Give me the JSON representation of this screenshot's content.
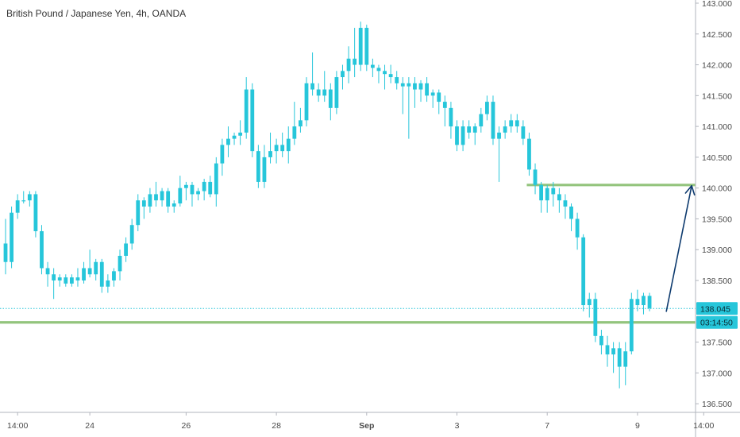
{
  "chart_data": {
    "type": "candlestick",
    "title": "British Pound / Japanese Yen, 4h, OANDA",
    "ylim": [
      136.45,
      143.0
    ],
    "yticks": [
      {
        "value": 143.0,
        "label": "143.000"
      },
      {
        "value": 142.5,
        "label": "142.500"
      },
      {
        "value": 142.0,
        "label": "142.000"
      },
      {
        "value": 141.5,
        "label": "141.500"
      },
      {
        "value": 141.0,
        "label": "141.000"
      },
      {
        "value": 140.5,
        "label": "140.500"
      },
      {
        "value": 140.0,
        "label": "140.000"
      },
      {
        "value": 139.5,
        "label": "139.500"
      },
      {
        "value": 139.0,
        "label": "139.000"
      },
      {
        "value": 138.5,
        "label": "138.500"
      },
      {
        "value": 137.5,
        "label": "137.500"
      },
      {
        "value": 137.0,
        "label": "137.000"
      },
      {
        "value": 136.5,
        "label": "136.500"
      }
    ],
    "xticks": [
      {
        "index": 2,
        "label": "14:00",
        "bold": false
      },
      {
        "index": 14,
        "label": "24",
        "bold": false
      },
      {
        "index": 30,
        "label": "26",
        "bold": false
      },
      {
        "index": 45,
        "label": "28",
        "bold": false
      },
      {
        "index": 60,
        "label": "Sep",
        "bold": true
      },
      {
        "index": 75,
        "label": "3",
        "bold": false
      },
      {
        "index": 90,
        "label": "7",
        "bold": false
      },
      {
        "index": 105,
        "label": "9",
        "bold": false
      },
      {
        "index": 116,
        "label": "14:00",
        "bold": false
      }
    ],
    "candles": [
      [
        139.1,
        139.5,
        138.6,
        138.8
      ],
      [
        138.8,
        139.7,
        138.7,
        139.6
      ],
      [
        139.6,
        139.9,
        139.5,
        139.8
      ],
      [
        139.8,
        139.95,
        139.75,
        139.8
      ],
      [
        139.8,
        139.95,
        139.7,
        139.9
      ],
      [
        139.9,
        139.95,
        139.2,
        139.3
      ],
      [
        139.3,
        139.4,
        138.6,
        138.7
      ],
      [
        138.7,
        138.8,
        138.4,
        138.6
      ],
      [
        138.6,
        138.7,
        138.2,
        138.5
      ],
      [
        138.5,
        138.6,
        138.4,
        138.55
      ],
      [
        138.55,
        138.6,
        138.4,
        138.45
      ],
      [
        138.45,
        138.6,
        138.4,
        138.55
      ],
      [
        138.55,
        138.7,
        138.4,
        138.5
      ],
      [
        138.5,
        138.8,
        138.45,
        138.7
      ],
      [
        138.7,
        139.0,
        138.55,
        138.6
      ],
      [
        138.6,
        138.85,
        138.5,
        138.8
      ],
      [
        138.8,
        138.85,
        138.3,
        138.4
      ],
      [
        138.4,
        138.6,
        138.3,
        138.5
      ],
      [
        138.5,
        138.7,
        138.4,
        138.65
      ],
      [
        138.65,
        139.0,
        138.5,
        138.9
      ],
      [
        138.9,
        139.2,
        138.8,
        139.1
      ],
      [
        139.1,
        139.5,
        139.0,
        139.4
      ],
      [
        139.4,
        139.9,
        139.3,
        139.8
      ],
      [
        139.8,
        139.85,
        139.5,
        139.7
      ],
      [
        139.7,
        140.0,
        139.6,
        139.9
      ],
      [
        139.9,
        140.1,
        139.7,
        139.8
      ],
      [
        139.8,
        140.0,
        139.7,
        139.95
      ],
      [
        139.95,
        140.0,
        139.6,
        139.7
      ],
      [
        139.7,
        139.8,
        139.6,
        139.75
      ],
      [
        139.75,
        140.2,
        139.7,
        140.0
      ],
      [
        140.0,
        140.1,
        139.8,
        140.05
      ],
      [
        140.05,
        140.1,
        139.7,
        139.9
      ],
      [
        139.9,
        140.0,
        139.8,
        139.95
      ],
      [
        139.95,
        140.15,
        139.8,
        140.1
      ],
      [
        140.1,
        140.2,
        139.85,
        139.9
      ],
      [
        139.9,
        140.5,
        139.7,
        140.4
      ],
      [
        140.4,
        140.8,
        140.2,
        140.7
      ],
      [
        140.7,
        141.0,
        140.5,
        140.8
      ],
      [
        140.8,
        140.9,
        140.7,
        140.85
      ],
      [
        140.85,
        141.1,
        140.7,
        140.9
      ],
      [
        140.9,
        141.8,
        140.8,
        141.6
      ],
      [
        141.6,
        141.7,
        140.5,
        140.6
      ],
      [
        140.6,
        140.7,
        140.0,
        140.1
      ],
      [
        140.1,
        140.7,
        140.0,
        140.5
      ],
      [
        140.5,
        140.9,
        140.4,
        140.6
      ],
      [
        140.6,
        140.8,
        140.4,
        140.7
      ],
      [
        140.7,
        140.9,
        140.5,
        140.6
      ],
      [
        140.6,
        141.0,
        140.4,
        140.8
      ],
      [
        140.8,
        141.4,
        140.7,
        141.0
      ],
      [
        141.0,
        141.3,
        140.9,
        141.1
      ],
      [
        141.1,
        141.8,
        141.0,
        141.7
      ],
      [
        141.7,
        142.2,
        141.5,
        141.6
      ],
      [
        141.6,
        141.7,
        141.4,
        141.5
      ],
      [
        141.5,
        141.9,
        141.4,
        141.6
      ],
      [
        141.6,
        141.7,
        141.1,
        141.3
      ],
      [
        141.3,
        141.9,
        141.2,
        141.8
      ],
      [
        141.8,
        142.0,
        141.6,
        141.9
      ],
      [
        141.9,
        142.3,
        141.7,
        142.1
      ],
      [
        142.1,
        142.6,
        141.8,
        142.0
      ],
      [
        142.0,
        142.7,
        141.9,
        142.6
      ],
      [
        142.6,
        142.65,
        141.9,
        142.0
      ],
      [
        142.0,
        142.1,
        141.8,
        141.95
      ],
      [
        141.95,
        142.0,
        141.7,
        141.9
      ],
      [
        141.9,
        142.0,
        141.6,
        141.85
      ],
      [
        141.85,
        142.0,
        141.7,
        141.8
      ],
      [
        141.8,
        141.9,
        141.6,
        141.7
      ],
      [
        141.7,
        141.8,
        141.2,
        141.65
      ],
      [
        141.65,
        141.8,
        140.8,
        141.7
      ],
      [
        141.7,
        141.8,
        141.3,
        141.6
      ],
      [
        141.6,
        141.75,
        141.4,
        141.7
      ],
      [
        141.7,
        141.8,
        141.4,
        141.5
      ],
      [
        141.5,
        141.6,
        141.3,
        141.55
      ],
      [
        141.55,
        141.6,
        141.2,
        141.4
      ],
      [
        141.4,
        141.5,
        141.0,
        141.3
      ],
      [
        141.3,
        141.4,
        140.8,
        141.0
      ],
      [
        141.0,
        141.1,
        140.6,
        140.7
      ],
      [
        140.7,
        141.1,
        140.6,
        141.0
      ],
      [
        141.0,
        141.1,
        140.8,
        140.9
      ],
      [
        140.9,
        141.05,
        140.7,
        141.0
      ],
      [
        141.0,
        141.3,
        140.9,
        141.2
      ],
      [
        141.2,
        141.5,
        141.1,
        141.4
      ],
      [
        141.4,
        141.5,
        140.7,
        140.8
      ],
      [
        140.8,
        141.0,
        140.1,
        140.9
      ],
      [
        140.9,
        141.1,
        140.8,
        141.0
      ],
      [
        141.0,
        141.2,
        140.9,
        141.1
      ],
      [
        141.1,
        141.2,
        140.9,
        141.0
      ],
      [
        141.0,
        141.1,
        140.7,
        140.8
      ],
      [
        140.8,
        140.9,
        140.2,
        140.3
      ],
      [
        140.3,
        140.4,
        139.9,
        140.05
      ],
      [
        140.05,
        140.1,
        139.6,
        139.8
      ],
      [
        139.8,
        140.05,
        139.6,
        140.0
      ],
      [
        140.0,
        140.1,
        139.7,
        139.9
      ],
      [
        139.9,
        140.0,
        139.6,
        139.8
      ],
      [
        139.8,
        139.9,
        139.5,
        139.7
      ],
      [
        139.7,
        139.75,
        139.3,
        139.5
      ],
      [
        139.5,
        139.6,
        139.0,
        139.2
      ],
      [
        139.2,
        139.25,
        138.0,
        138.1
      ],
      [
        138.1,
        138.3,
        137.9,
        138.2
      ],
      [
        138.2,
        138.3,
        137.5,
        137.6
      ],
      [
        137.6,
        137.7,
        137.3,
        137.45
      ],
      [
        137.45,
        137.6,
        137.1,
        137.3
      ],
      [
        137.3,
        137.5,
        137.0,
        137.4
      ],
      [
        137.4,
        137.5,
        136.75,
        137.1
      ],
      [
        137.1,
        137.5,
        136.8,
        137.35
      ],
      [
        137.35,
        138.3,
        137.3,
        138.2
      ],
      [
        138.2,
        138.35,
        138.0,
        138.1
      ],
      [
        138.1,
        138.3,
        137.95,
        138.25
      ],
      [
        138.25,
        138.3,
        138.0,
        138.05
      ]
    ],
    "horizontal_lines": [
      {
        "y": 140.05,
        "start_index": 87,
        "extend_to_edge": true,
        "color": "#93c47d"
      },
      {
        "y": 137.82,
        "start_index": 0,
        "extend_to_edge": true,
        "color": "#93c47d"
      }
    ],
    "arrow": {
      "from_index": 109,
      "from_y": 138.0,
      "to_index": 114,
      "to_y": 140.05,
      "color": "#0d3a6e"
    },
    "last_price": {
      "value": 138.045,
      "label": "138.045",
      "color": "#26c6da"
    },
    "countdown": {
      "label": "03:14:50",
      "y": 137.82,
      "color": "#26c6da"
    },
    "colors": {
      "up": "#26c6da",
      "down": "#26c6da",
      "axis": "#b2b5be",
      "background": "#ffffff"
    }
  }
}
